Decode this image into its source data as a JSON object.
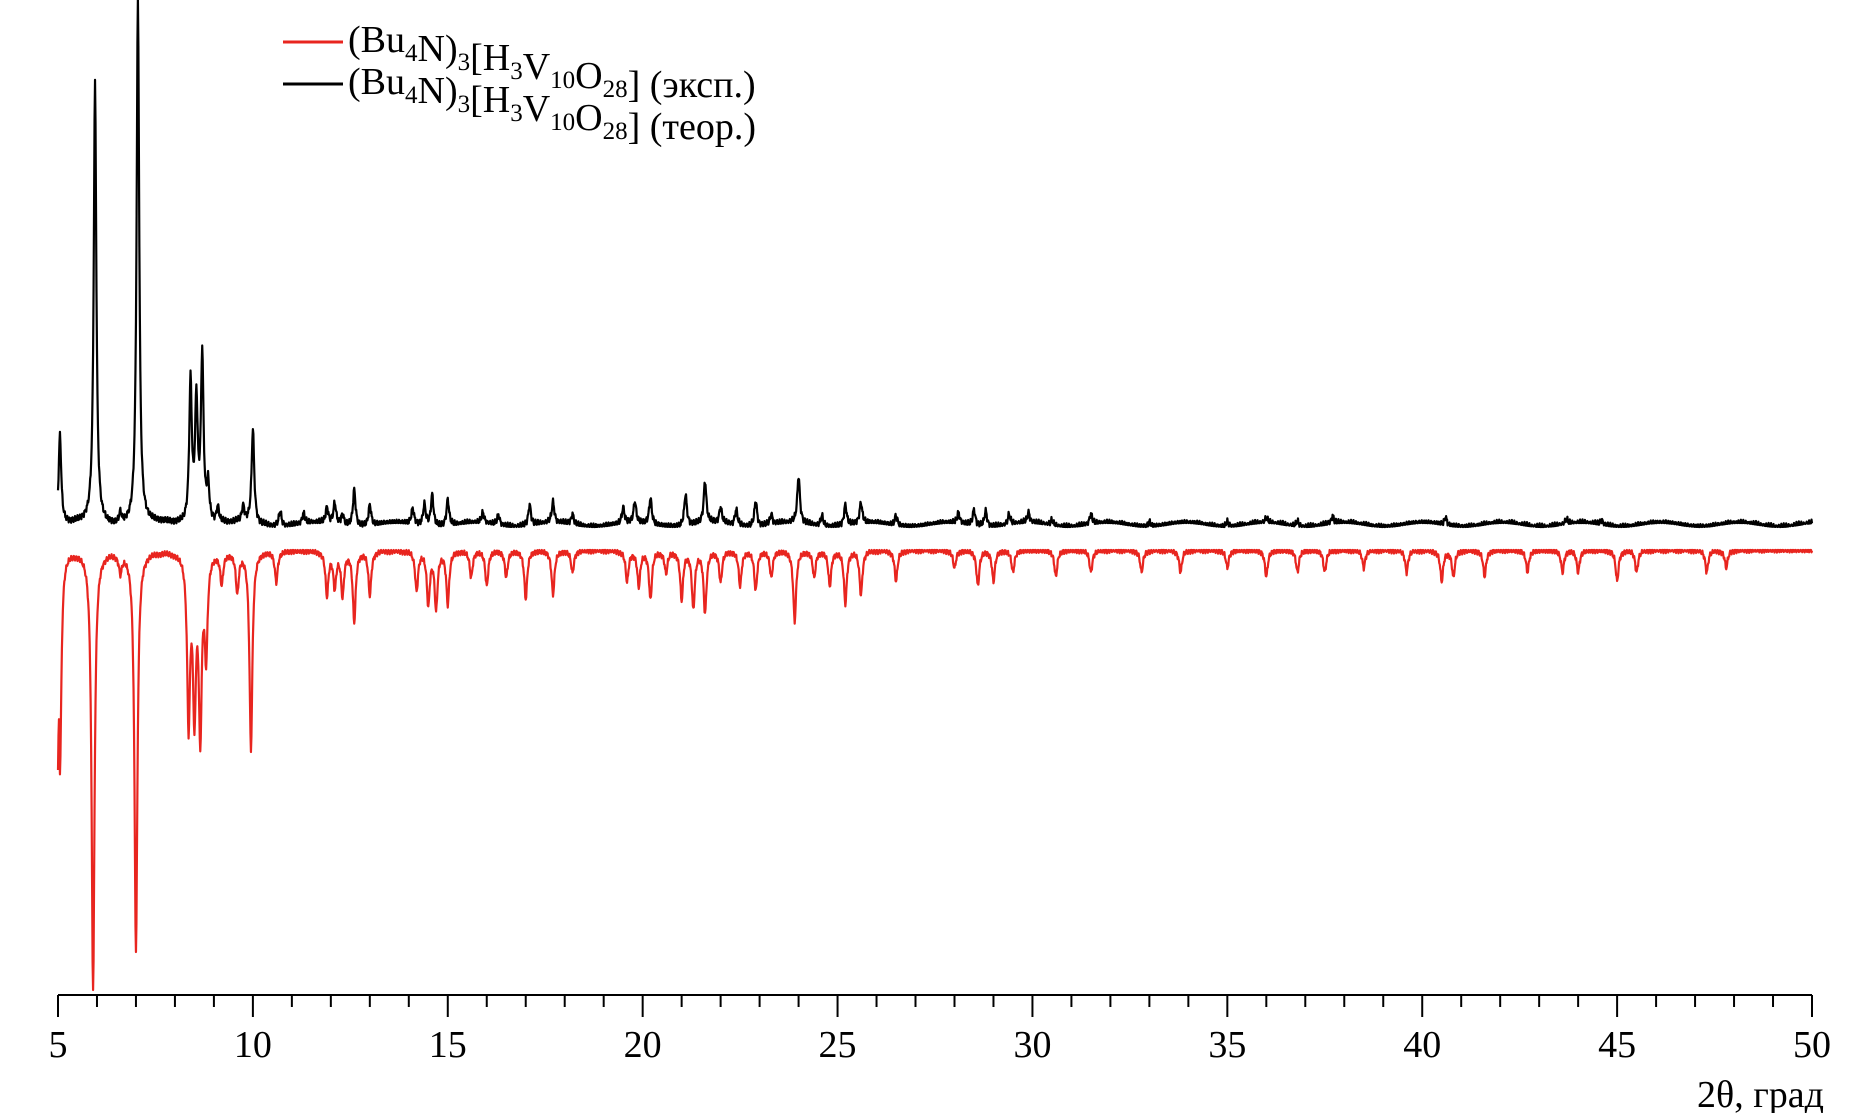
{
  "chart_data": {
    "type": "line",
    "title": "",
    "xlabel": "2θ, град",
    "ylabel": "",
    "xlim": [
      5,
      50
    ],
    "x_major_ticks": [
      5,
      10,
      15,
      20,
      25,
      30,
      35,
      40,
      45,
      50
    ],
    "x_tick_labels": [
      "5",
      "10",
      "15",
      "20",
      "25",
      "30",
      "35",
      "40",
      "45",
      "50"
    ],
    "x_minor_step": 1,
    "grid": false,
    "legend_position": "top-left",
    "series": [
      {
        "name": "(Bu4N)3[H3V10O28] (эксп.)",
        "legend": [
          {
            "t": "(Bu"
          },
          {
            "t": "4",
            "sub": true
          },
          {
            "t": "N)"
          },
          {
            "t": "3",
            "sub": true
          },
          {
            "t": "[H"
          },
          {
            "t": "3",
            "sub": true
          },
          {
            "t": "V"
          },
          {
            "t": "10",
            "sub": true
          },
          {
            "t": "O"
          },
          {
            "t": "28",
            "sub": true
          },
          {
            "t": "] (эксп.)"
          }
        ],
        "color": "#e8251f",
        "orientation": "inverted",
        "clipped_plateau": true,
        "peaks": [
          [
            5.05,
            0.5
          ],
          [
            5.9,
            1.0
          ],
          [
            6.6,
            0.04
          ],
          [
            7.0,
            0.91
          ],
          [
            8.35,
            0.38
          ],
          [
            8.5,
            0.35
          ],
          [
            8.65,
            0.4
          ],
          [
            8.8,
            0.22
          ],
          [
            9.2,
            0.07
          ],
          [
            9.6,
            0.09
          ],
          [
            9.95,
            0.45
          ],
          [
            10.6,
            0.07
          ],
          [
            11.9,
            0.1
          ],
          [
            12.1,
            0.08
          ],
          [
            12.3,
            0.1
          ],
          [
            12.6,
            0.16
          ],
          [
            13.0,
            0.1
          ],
          [
            14.2,
            0.09
          ],
          [
            14.5,
            0.12
          ],
          [
            14.7,
            0.13
          ],
          [
            15.0,
            0.12
          ],
          [
            15.6,
            0.06
          ],
          [
            16.0,
            0.08
          ],
          [
            16.5,
            0.06
          ],
          [
            17.0,
            0.11
          ],
          [
            17.7,
            0.1
          ],
          [
            18.2,
            0.05
          ],
          [
            19.6,
            0.07
          ],
          [
            19.9,
            0.08
          ],
          [
            20.2,
            0.11
          ],
          [
            20.6,
            0.05
          ],
          [
            21.0,
            0.11
          ],
          [
            21.3,
            0.13
          ],
          [
            21.6,
            0.14
          ],
          [
            22.0,
            0.07
          ],
          [
            22.5,
            0.08
          ],
          [
            22.9,
            0.09
          ],
          [
            23.3,
            0.06
          ],
          [
            23.9,
            0.16
          ],
          [
            24.4,
            0.06
          ],
          [
            24.8,
            0.08
          ],
          [
            25.2,
            0.12
          ],
          [
            25.6,
            0.1
          ],
          [
            26.5,
            0.07
          ],
          [
            28.0,
            0.04
          ],
          [
            28.6,
            0.08
          ],
          [
            29.0,
            0.07
          ],
          [
            29.5,
            0.05
          ],
          [
            30.6,
            0.06
          ],
          [
            31.5,
            0.05
          ],
          [
            32.8,
            0.05
          ],
          [
            33.8,
            0.05
          ],
          [
            35.0,
            0.04
          ],
          [
            36.0,
            0.06
          ],
          [
            36.8,
            0.05
          ],
          [
            37.5,
            0.05
          ],
          [
            38.5,
            0.04
          ],
          [
            39.6,
            0.05
          ],
          [
            40.5,
            0.07
          ],
          [
            40.8,
            0.06
          ],
          [
            41.6,
            0.06
          ],
          [
            42.7,
            0.05
          ],
          [
            43.6,
            0.05
          ],
          [
            44.0,
            0.05
          ],
          [
            45.0,
            0.07
          ],
          [
            45.5,
            0.05
          ],
          [
            47.3,
            0.05
          ],
          [
            47.8,
            0.04
          ]
        ]
      },
      {
        "name": "(Bu4N)3[H3V10O28] (теор.)",
        "legend": [
          {
            "t": "(Bu"
          },
          {
            "t": "4",
            "sub": true
          },
          {
            "t": "N)"
          },
          {
            "t": "3",
            "sub": true
          },
          {
            "t": "[H"
          },
          {
            "t": "3",
            "sub": true
          },
          {
            "t": "V"
          },
          {
            "t": "10",
            "sub": true
          },
          {
            "t": "O"
          },
          {
            "t": "28",
            "sub": true
          },
          {
            "t": "] (теор.)"
          }
        ],
        "color": "#000000",
        "orientation": "upright",
        "peaks": [
          [
            5.05,
            0.17
          ],
          [
            5.95,
            0.84
          ],
          [
            6.6,
            0.02
          ],
          [
            7.05,
            1.0
          ],
          [
            8.4,
            0.27
          ],
          [
            8.55,
            0.23
          ],
          [
            8.7,
            0.32
          ],
          [
            8.85,
            0.07
          ],
          [
            9.1,
            0.03
          ],
          [
            9.75,
            0.03
          ],
          [
            10.0,
            0.18
          ],
          [
            10.7,
            0.03
          ],
          [
            11.3,
            0.02
          ],
          [
            11.9,
            0.03
          ],
          [
            12.1,
            0.04
          ],
          [
            12.3,
            0.02
          ],
          [
            12.6,
            0.07
          ],
          [
            13.0,
            0.04
          ],
          [
            14.1,
            0.03
          ],
          [
            14.4,
            0.04
          ],
          [
            14.6,
            0.06
          ],
          [
            15.0,
            0.05
          ],
          [
            15.9,
            0.02
          ],
          [
            16.3,
            0.02
          ],
          [
            17.1,
            0.04
          ],
          [
            17.7,
            0.04
          ],
          [
            18.2,
            0.02
          ],
          [
            19.5,
            0.03
          ],
          [
            19.8,
            0.04
          ],
          [
            20.2,
            0.05
          ],
          [
            21.1,
            0.06
          ],
          [
            21.6,
            0.08
          ],
          [
            22.0,
            0.03
          ],
          [
            22.4,
            0.03
          ],
          [
            22.9,
            0.05
          ],
          [
            23.3,
            0.02
          ],
          [
            24.0,
            0.09
          ],
          [
            24.6,
            0.02
          ],
          [
            25.2,
            0.04
          ],
          [
            25.6,
            0.04
          ],
          [
            26.5,
            0.02
          ],
          [
            28.1,
            0.02
          ],
          [
            28.5,
            0.03
          ],
          [
            28.8,
            0.03
          ],
          [
            29.4,
            0.02
          ],
          [
            29.9,
            0.02
          ],
          [
            30.5,
            0.01
          ],
          [
            31.5,
            0.02
          ],
          [
            33.0,
            0.01
          ],
          [
            35.0,
            0.01
          ],
          [
            36.0,
            0.01
          ],
          [
            36.8,
            0.01
          ],
          [
            37.7,
            0.015
          ],
          [
            40.6,
            0.015
          ],
          [
            43.7,
            0.01
          ],
          [
            44.6,
            0.01
          ]
        ]
      }
    ]
  }
}
